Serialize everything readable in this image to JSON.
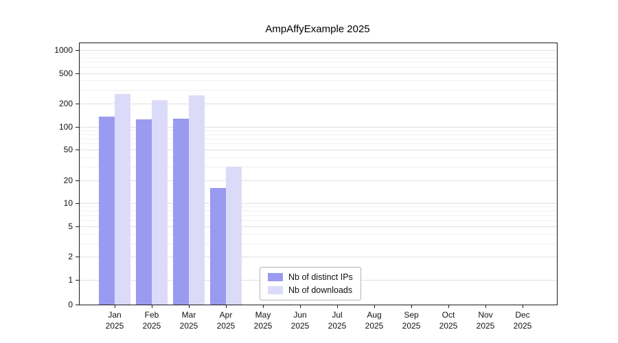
{
  "title": "AmpAffyExample 2025",
  "colors": {
    "distinct_ips": "#9a9af0",
    "downloads": "#dbdbf9",
    "grid_major": "#e0e0e0",
    "grid_minor": "#f0f0f0",
    "axis": "#1a1a1a",
    "background": "#ffffff"
  },
  "legend": {
    "items": [
      {
        "label": "Nb of distinct IPs",
        "color": "#9a9af0"
      },
      {
        "label": "Nb of downloads",
        "color": "#dbdbf9"
      }
    ]
  },
  "chart_data": {
    "type": "bar",
    "title": "AmpAffyExample 2025",
    "categories": [
      "Jan 2025",
      "Feb 2025",
      "Mar 2025",
      "Apr 2025",
      "May 2025",
      "Jun 2025",
      "Jul 2025",
      "Aug 2025",
      "Sep 2025",
      "Oct 2025",
      "Nov 2025",
      "Dec 2025"
    ],
    "series": [
      {
        "name": "Nb of distinct IPs",
        "color": "#9a9af0",
        "values": [
          135,
          125,
          127,
          16,
          0,
          0,
          0,
          0,
          0,
          0,
          0,
          0
        ]
      },
      {
        "name": "Nb of downloads",
        "color": "#dbdbf9",
        "values": [
          265,
          220,
          255,
          30,
          0,
          0,
          0,
          0,
          0,
          0,
          0,
          0
        ]
      }
    ],
    "xlabel": "",
    "ylabel": "",
    "yscale": "symlog",
    "ylim": [
      0,
      1000
    ],
    "yticks": [
      0,
      1,
      2,
      5,
      10,
      20,
      50,
      100,
      200,
      500,
      1000
    ],
    "grid": true,
    "legend_position": "lower center inside"
  }
}
